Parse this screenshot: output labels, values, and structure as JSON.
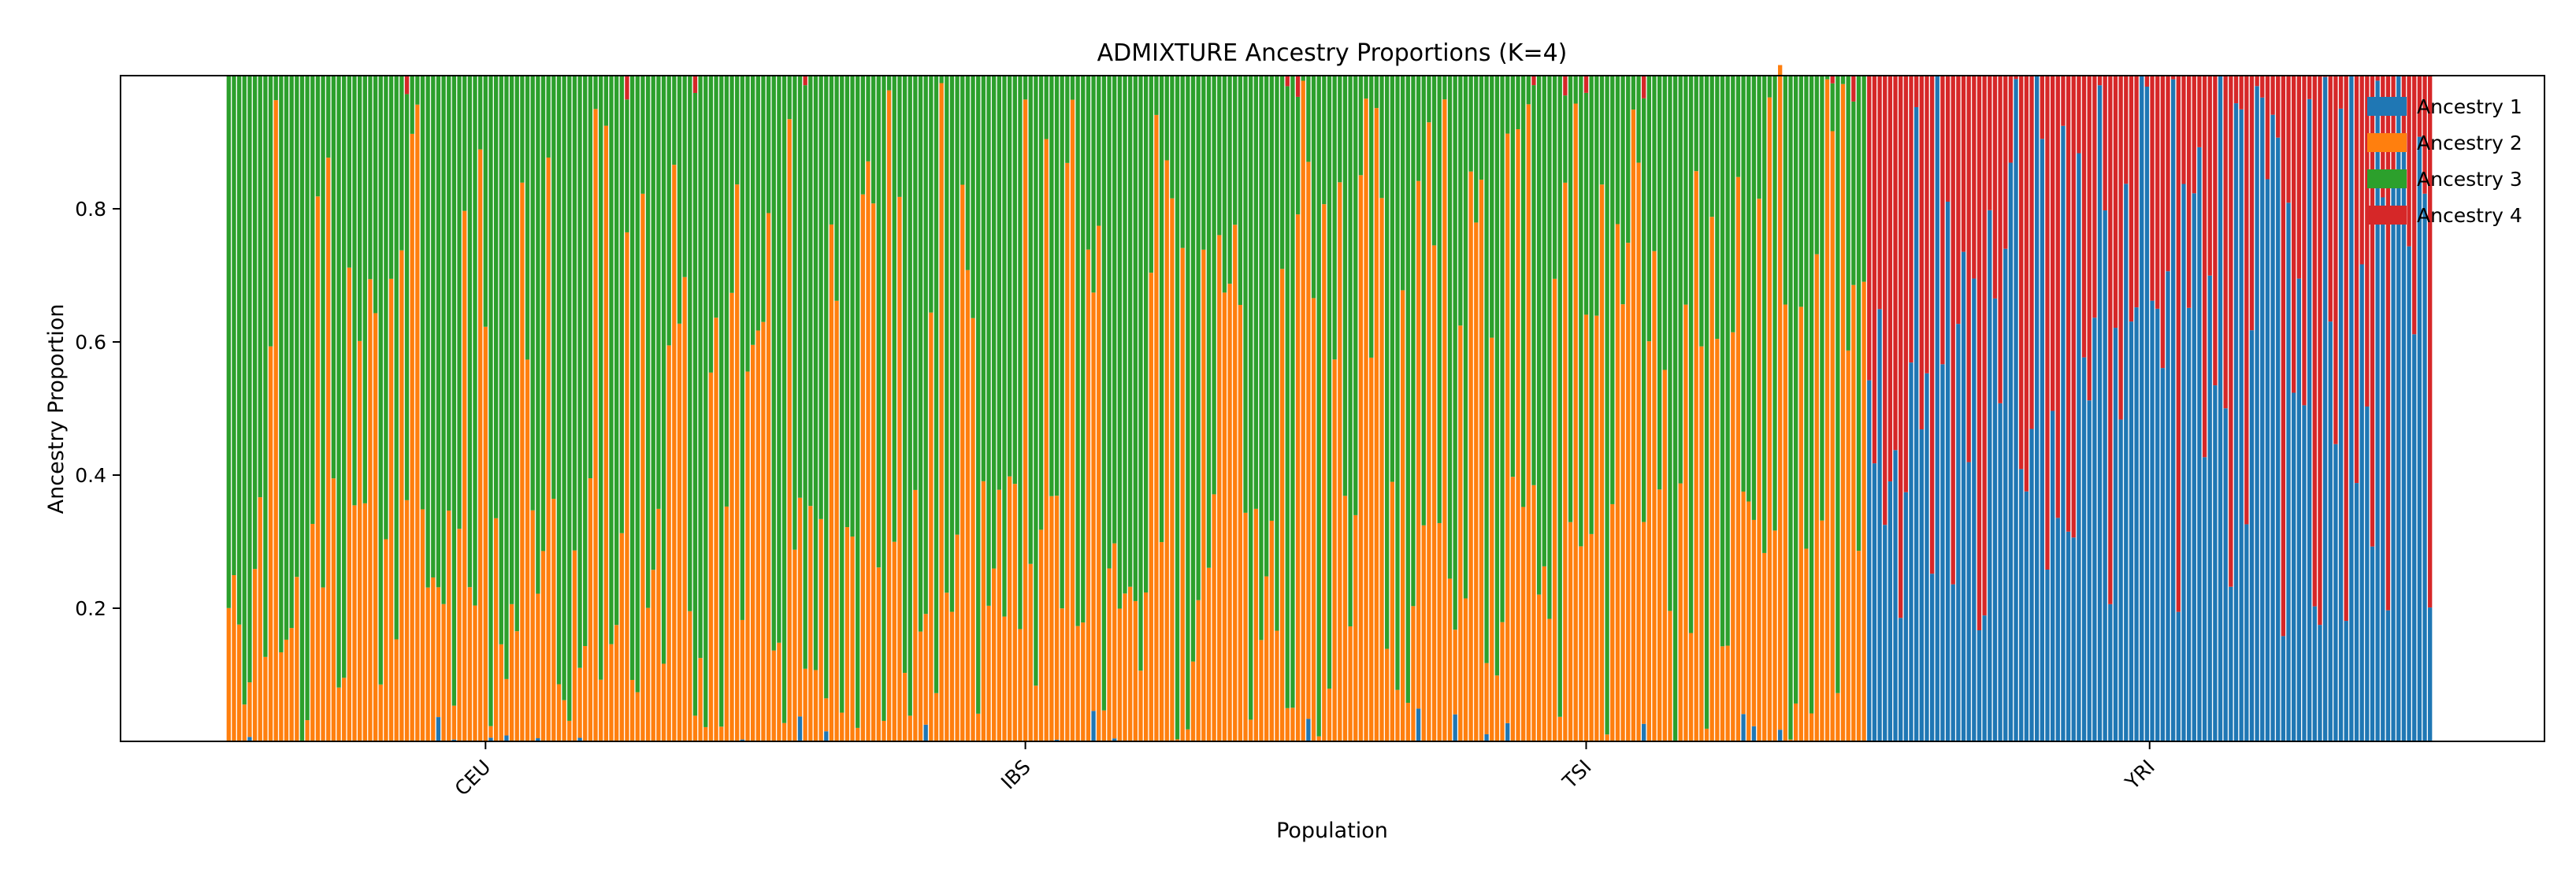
{
  "chart_data": {
    "type": "bar",
    "stacked": true,
    "title": "ADMIXTURE Ancestry Proportions (K=4)",
    "xlabel": "Population",
    "ylabel": "Ancestry Proportion",
    "ylim": [
      0,
      1
    ],
    "yticks": [
      0.2,
      0.4,
      0.6,
      0.8
    ],
    "grid": false,
    "legend_position": "top-right",
    "categories": [
      "CEU",
      "IBS",
      "TSI",
      "YRI"
    ],
    "samples_per_population": [
      99,
      107,
      107,
      108
    ],
    "series": [
      {
        "name": "Ancestry 1",
        "color": "#1f77b4"
      },
      {
        "name": "Ancestry 2",
        "color": "#ff7f0e"
      },
      {
        "name": "Ancestry 3",
        "color": "#2ca02c"
      },
      {
        "name": "Ancestry 4",
        "color": "#d62728"
      }
    ],
    "population_profiles": {
      "CEU": {
        "ancestry_1": 0.0,
        "ancestry_2": 0.35,
        "ancestry_3": 0.65,
        "ancestry_4": 0.0
      },
      "IBS": {
        "ancestry_1": 0.01,
        "ancestry_2": 0.42,
        "ancestry_3": 0.57,
        "ancestry_4": 0.0
      },
      "TSI": {
        "ancestry_1": 0.0,
        "ancestry_2": 0.52,
        "ancestry_3": 0.48,
        "ancestry_4": 0.0
      },
      "YRI": {
        "ancestry_1": 0.6,
        "ancestry_2": 0.0,
        "ancestry_3": 0.0,
        "ancestry_4": 0.4
      }
    }
  }
}
